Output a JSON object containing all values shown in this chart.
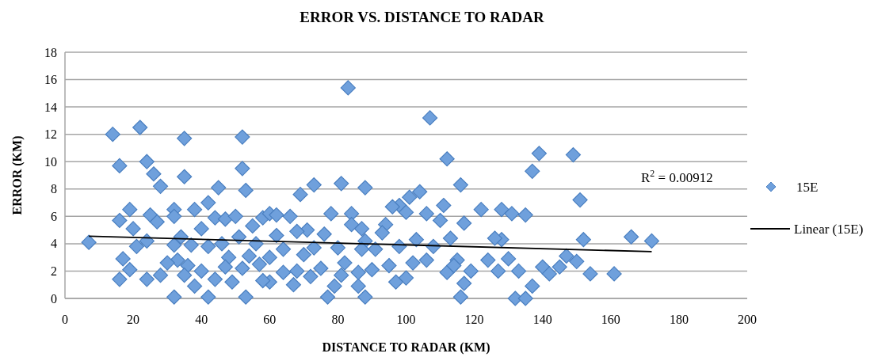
{
  "chart_data": {
    "type": "scatter",
    "title": "ERROR VS. DISTANCE TO RADAR",
    "xlabel": "DISTANCE TO RADAR (KM)",
    "ylabel": "ERROR (KM)",
    "xlim": [
      0,
      200
    ],
    "xticks": [
      0,
      20,
      40,
      60,
      80,
      100,
      120,
      140,
      160,
      180,
      200
    ],
    "ylim": [
      0,
      18
    ],
    "yticks": [
      0,
      2,
      4,
      6,
      8,
      10,
      12,
      14,
      16,
      18
    ],
    "grid": "y",
    "legend": "right",
    "annotations": [
      "R$^{2}$ = 0.00912"
    ],
    "series": [
      {
        "name": "15E",
        "color": "#6fa0dc",
        "marker": "diamond",
        "x": [
          7,
          14,
          22,
          35,
          52,
          16,
          24,
          26,
          35,
          28,
          52,
          45,
          53,
          19,
          16,
          20,
          25,
          27,
          32,
          32,
          38,
          42,
          44,
          47,
          50,
          55,
          58,
          60,
          66,
          69,
          73,
          81,
          84,
          88,
          83,
          107,
          112,
          116,
          104,
          101,
          98,
          100,
          106,
          111,
          113,
          117,
          122,
          128,
          131,
          135,
          137,
          139,
          149,
          151,
          152,
          147,
          150,
          154,
          161,
          166,
          172,
          128,
          126,
          130,
          133,
          132,
          135,
          137,
          140,
          142,
          145,
          115,
          119,
          116,
          117,
          124,
          127,
          108,
          106,
          112,
          103,
          102,
          100,
          97,
          95,
          94,
          93,
          91,
          98,
          88,
          87,
          87,
          86,
          88,
          84,
          86,
          80,
          79,
          81,
          76,
          77,
          75,
          78,
          73,
          71,
          70,
          68,
          68,
          67,
          64,
          64,
          62,
          60,
          60,
          57,
          56,
          54,
          53,
          52,
          51,
          49,
          48,
          47,
          46,
          44,
          42,
          42,
          40,
          40,
          38,
          37,
          36,
          35,
          34,
          33,
          32,
          32,
          28,
          24,
          24,
          21,
          19,
          17,
          16,
          30,
          58,
          62,
          72,
          82,
          90,
          96,
          110,
          114
        ],
        "values": [
          4.1,
          12,
          12.5,
          11.7,
          11.8,
          9.7,
          10,
          9.1,
          8.9,
          8.2,
          9.5,
          8.1,
          7.9,
          6.5,
          5.7,
          5.1,
          6.1,
          5.6,
          6.5,
          6.0,
          6.5,
          7.0,
          5.9,
          5.8,
          6.0,
          5.3,
          5.9,
          6.2,
          6.0,
          7.6,
          8.3,
          8.4,
          6.2,
          8.1,
          15.4,
          13.2,
          10.2,
          8.3,
          7.8,
          7.4,
          6.8,
          6.3,
          6.2,
          6.8,
          4.4,
          5.5,
          6.5,
          6.5,
          6.2,
          6.1,
          9.3,
          10.6,
          10.5,
          7.2,
          4.3,
          3.1,
          2.7,
          1.8,
          1.8,
          4.5,
          4.2,
          4.3,
          4.4,
          2.9,
          2.0,
          0,
          0,
          0.9,
          2.3,
          1.8,
          2.3,
          2.8,
          2.0,
          0.1,
          1.1,
          2.8,
          2.0,
          3.8,
          2.8,
          1.9,
          4.3,
          2.6,
          1.5,
          1.2,
          2.4,
          5.4,
          4.8,
          3.6,
          3.8,
          4.2,
          3.6,
          5.1,
          0.9,
          0.1,
          5.4,
          1.9,
          3.7,
          0.9,
          1.7,
          4.7,
          0.1,
          2.2,
          6.2,
          3.7,
          5.0,
          3.2,
          2.0,
          4.9,
          1.0,
          1.9,
          3.6,
          4.6,
          3.0,
          1.2,
          2.5,
          4.0,
          3.1,
          0.1,
          2.2,
          4.5,
          1.2,
          3.0,
          2.3,
          4.0,
          1.4,
          3.8,
          0.1,
          5.1,
          2.0,
          0.9,
          3.9,
          2.4,
          1.7,
          4.5,
          2.8,
          3.9,
          0.1,
          1.7,
          4.2,
          1.4,
          3.8,
          2.1,
          2.9,
          1.4,
          2.6,
          1.3,
          6.1,
          1.6,
          2.6,
          2.1,
          6.7,
          5.7,
          2.4
        ]
      },
      {
        "name": "Linear (15E)",
        "type": "line",
        "color": "#000000",
        "marker": "none",
        "x": [
          7,
          172
        ],
        "values": [
          4.55,
          3.42
        ]
      }
    ]
  }
}
